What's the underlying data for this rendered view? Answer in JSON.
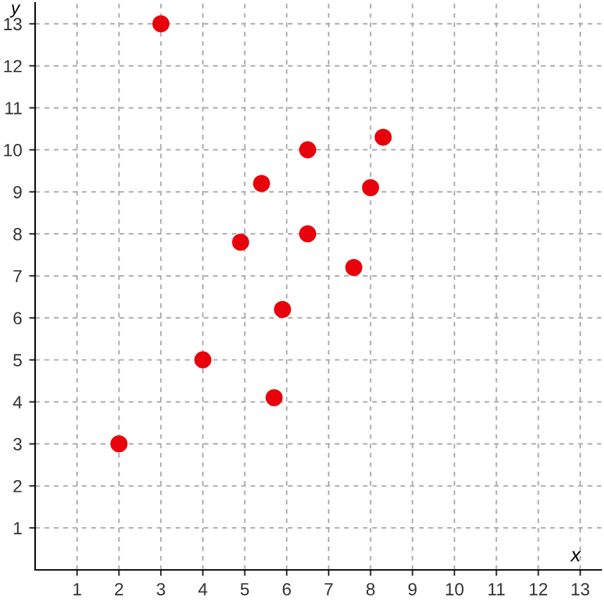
{
  "chart_data": {
    "type": "scatter",
    "xlabel": "x",
    "ylabel": "y",
    "x": [
      2,
      3,
      4,
      4.9,
      5.4,
      5.7,
      5.9,
      6.5,
      6.5,
      7.6,
      8,
      8.3
    ],
    "series": [
      {
        "color": "#e8000b",
        "values": [
          3,
          13,
          5,
          7.8,
          9.2,
          4.1,
          6.2,
          10,
          8,
          7.2,
          9.1,
          10.3
        ]
      }
    ],
    "xlim": [
      0,
      13.5
    ],
    "ylim": [
      0,
      13.5
    ],
    "xticks": [
      1,
      2,
      3,
      4,
      5,
      6,
      7,
      8,
      9,
      10,
      11,
      12,
      13
    ],
    "yticks": [
      1,
      2,
      3,
      4,
      5,
      6,
      7,
      8,
      9,
      10,
      11,
      12,
      13
    ],
    "grid": true,
    "marker": "circle"
  }
}
